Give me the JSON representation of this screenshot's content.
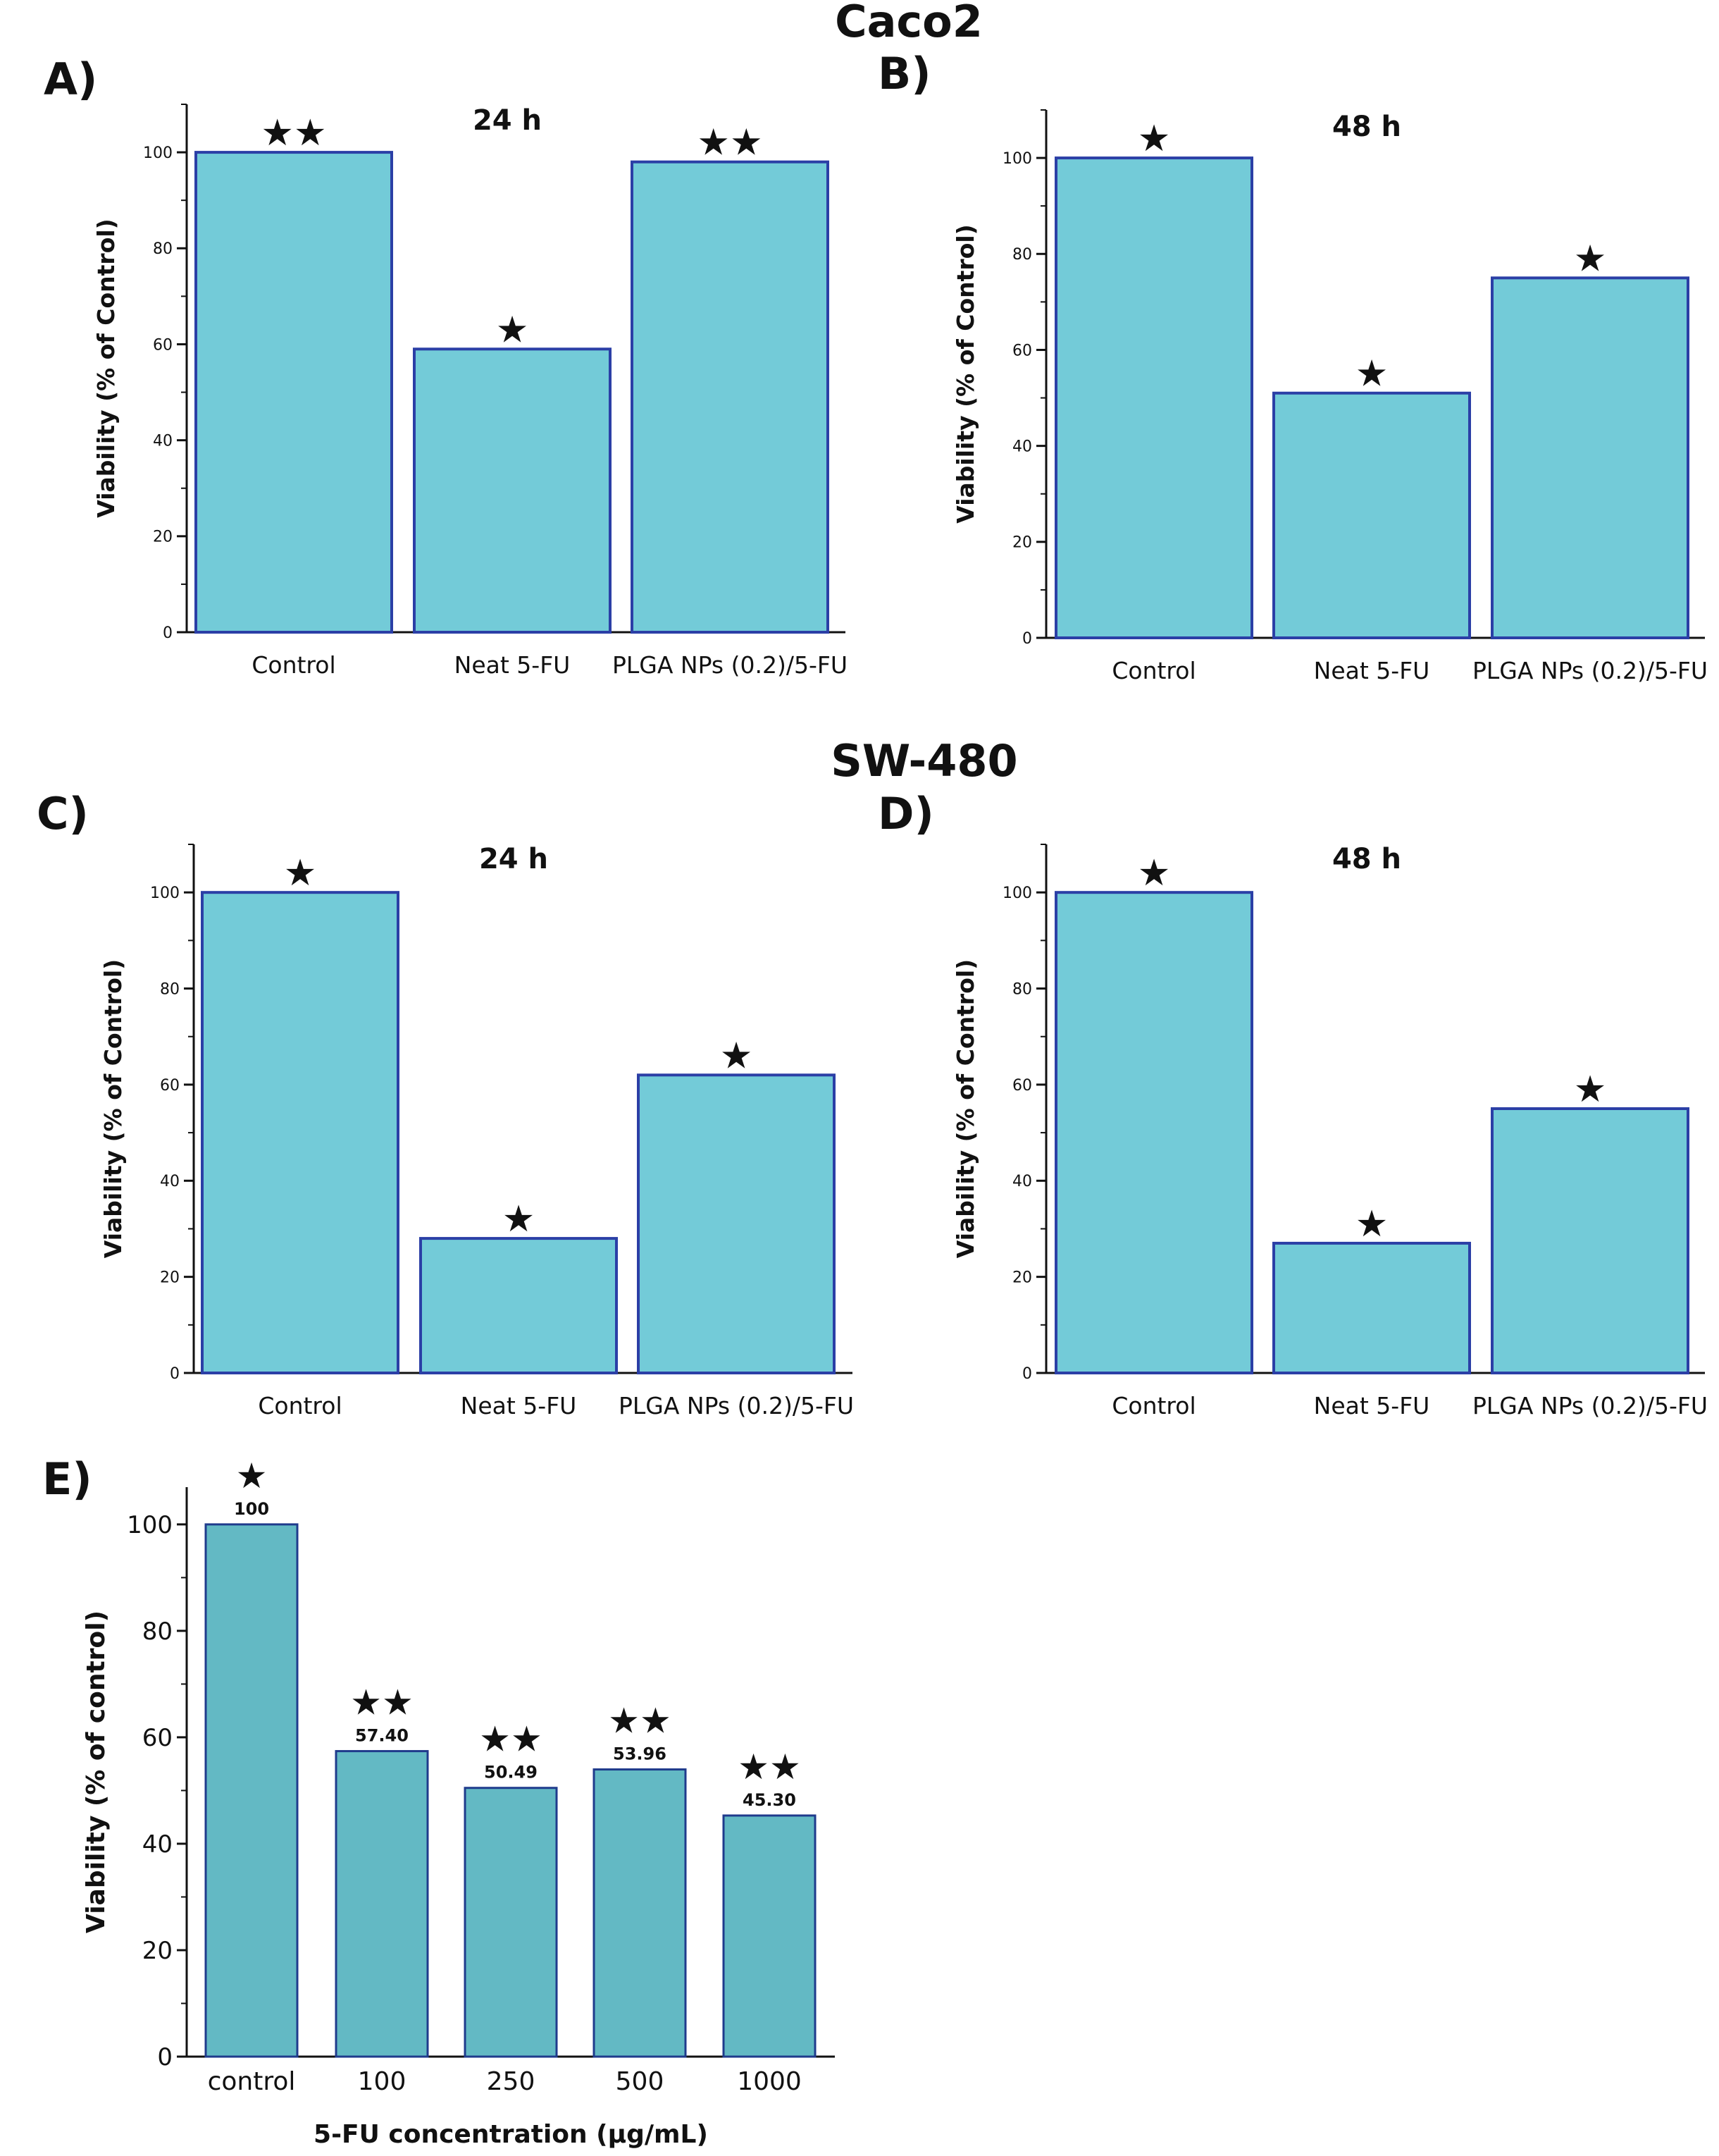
{
  "groups": [
    {
      "title": "Caco2"
    },
    {
      "title": "SW-480"
    }
  ],
  "star_char": "★",
  "colors": {
    "bar_fill": "#73CBD8",
    "bar_stroke": "#2B3FA6",
    "bar_fill_e": "#63B9C4",
    "bar_stroke_e": "#1F3B8C",
    "axis": "#111111",
    "text": "#111111"
  },
  "chart_data": [
    {
      "panel": "A)",
      "type": "bar",
      "title": "24 h",
      "xlabel": "",
      "ylabel": "Viability (% of Control)",
      "categories": [
        "Control",
        "Neat 5-FU",
        "PLGA NPs (0.2)/5-FU"
      ],
      "values": [
        100,
        59,
        98
      ],
      "stars": [
        2,
        1,
        2
      ],
      "ylim": [
        0,
        110
      ],
      "yticks": [
        0,
        20,
        40,
        60,
        80,
        100
      ],
      "ytick_labels": [
        "0",
        "20",
        "40",
        "60",
        "80",
        "100"
      ],
      "data_labels": []
    },
    {
      "panel": "B)",
      "type": "bar",
      "title": "48 h",
      "xlabel": "",
      "ylabel": "Viability (% of Control)",
      "categories": [
        "Control",
        "Neat 5-FU",
        "PLGA NPs (0.2)/5-FU"
      ],
      "values": [
        100,
        51,
        75
      ],
      "stars": [
        1,
        1,
        1
      ],
      "ylim": [
        0,
        110
      ],
      "yticks": [
        0,
        20,
        40,
        60,
        80,
        100
      ],
      "ytick_labels": [
        "0",
        "20",
        "40",
        "60",
        "80",
        "100"
      ],
      "data_labels": []
    },
    {
      "panel": "C)",
      "type": "bar",
      "title": "24 h",
      "xlabel": "",
      "ylabel": "Viability (% of Control)",
      "categories": [
        "Control",
        "Neat 5-FU",
        "PLGA NPs (0.2)/5-FU"
      ],
      "values": [
        100,
        28,
        62
      ],
      "stars": [
        1,
        1,
        1
      ],
      "ylim": [
        0,
        110
      ],
      "yticks": [
        0,
        20,
        40,
        60,
        80,
        100
      ],
      "ytick_labels": [
        "0",
        "20",
        "40",
        "60",
        "80",
        "100"
      ],
      "data_labels": []
    },
    {
      "panel": "D)",
      "type": "bar",
      "title": "48 h",
      "xlabel": "",
      "ylabel": "Viability (% of Control)",
      "categories": [
        "Control",
        "Neat 5-FU",
        "PLGA NPs (0.2)/5-FU"
      ],
      "values": [
        100,
        27,
        55
      ],
      "stars": [
        1,
        1,
        1
      ],
      "ylim": [
        0,
        110
      ],
      "yticks": [
        0,
        20,
        40,
        60,
        80,
        100
      ],
      "ytick_labels": [
        "0",
        "20",
        "40",
        "60",
        "80",
        "100"
      ],
      "data_labels": []
    },
    {
      "panel": "E)",
      "type": "bar",
      "title": "",
      "xlabel": "5-FU concentration (µg/mL)",
      "ylabel": "Viability (% of control)",
      "categories": [
        "control",
        "100",
        "250",
        "500",
        "1000"
      ],
      "values": [
        100,
        57.4,
        50.49,
        53.96,
        45.3
      ],
      "stars": [
        1,
        2,
        2,
        2,
        2
      ],
      "ylim": [
        0,
        107
      ],
      "yticks": [
        0,
        20,
        40,
        60,
        80,
        100
      ],
      "ytick_labels": [
        "0",
        "20",
        "40",
        "60",
        "80",
        "100"
      ],
      "data_labels": [
        "100",
        "57.40",
        "50.49",
        "53.96",
        "45.30"
      ]
    }
  ]
}
